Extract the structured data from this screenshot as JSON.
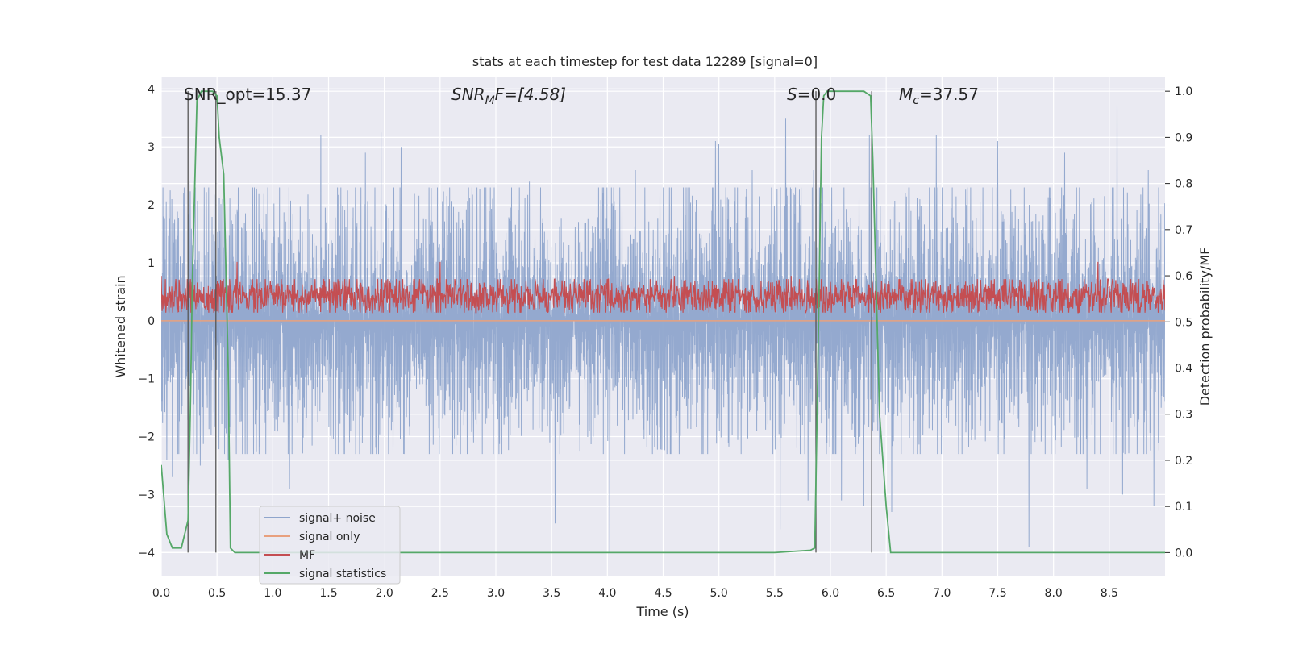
{
  "chart_data": {
    "type": "line",
    "title": "stats at each timestep for test data 12289 [signal=0]",
    "xlabel": "Time (s)",
    "ylabel": "Whitened strain",
    "y2label": "Detection probability/MF",
    "xlim": [
      0.0,
      9.0
    ],
    "ylim": [
      -4.4,
      4.2
    ],
    "y2lim": [
      -0.05,
      1.03
    ],
    "xticks": [
      "0.0",
      "0.5",
      "1.0",
      "1.5",
      "2.0",
      "2.5",
      "3.0",
      "3.5",
      "4.0",
      "4.5",
      "5.0",
      "5.5",
      "6.0",
      "6.5",
      "7.0",
      "7.5",
      "8.0",
      "8.5"
    ],
    "yticks": [
      "−4",
      "−3",
      "−2",
      "−1",
      "0",
      "1",
      "2",
      "3",
      "4"
    ],
    "y2ticks": [
      "0.0",
      "0.1",
      "0.2",
      "0.3",
      "0.4",
      "0.5",
      "0.6",
      "0.7",
      "0.8",
      "0.9",
      "1.0"
    ],
    "grid": true,
    "legend_position": "lower-left",
    "legend": [
      {
        "name": "signal+ noise",
        "color": "#8fa5cc"
      },
      {
        "name": "signal only",
        "color": "#e8a07e"
      },
      {
        "name": "MF",
        "color": "#c44e52"
      },
      {
        "name": "signal statistics",
        "color": "#55a868"
      }
    ],
    "annotations": {
      "snr_opt": "SNR_opt=15.37",
      "snr_mf_label": "SNR",
      "snr_mf_sub": "M",
      "snr_mf_value": "F=[4.58]",
      "s_label": "S",
      "s_value": "=0.0",
      "mc_label": "M",
      "mc_sub": "c",
      "mc_value": "=37.57"
    },
    "series": [
      {
        "name": "signal+ noise",
        "axis": "left",
        "description_amplitude": 1.2,
        "peaks": [
          [
            0.02,
            1.8
          ],
          [
            0.05,
            -2.4
          ],
          [
            0.08,
            2.25
          ],
          [
            0.1,
            -2.7
          ],
          [
            0.2,
            2.2
          ],
          [
            0.25,
            2.4
          ],
          [
            0.35,
            -2.5
          ],
          [
            0.49,
            3.25
          ],
          [
            0.55,
            2.1
          ],
          [
            0.6,
            -2.4
          ],
          [
            0.85,
            2.3
          ],
          [
            1.15,
            -2.9
          ],
          [
            1.43,
            3.2
          ],
          [
            1.83,
            2.9
          ],
          [
            1.97,
            3.25
          ],
          [
            2.15,
            3.0
          ],
          [
            2.8,
            -2.1
          ],
          [
            3.3,
            2.4
          ],
          [
            3.53,
            -3.5
          ],
          [
            4.02,
            -4.0
          ],
          [
            4.25,
            2.6
          ],
          [
            4.5,
            2.3
          ],
          [
            4.97,
            3.1
          ],
          [
            5.0,
            3.05
          ],
          [
            5.3,
            2.6
          ],
          [
            5.55,
            -3.6
          ],
          [
            5.6,
            3.5
          ],
          [
            5.8,
            -3.1
          ],
          [
            5.85,
            2.6
          ],
          [
            6.1,
            -3.1
          ],
          [
            6.3,
            -3.2
          ],
          [
            6.35,
            3.2
          ],
          [
            6.55,
            -3.3
          ],
          [
            6.95,
            3.2
          ],
          [
            7.5,
            3.1
          ],
          [
            7.78,
            -3.9
          ],
          [
            8.1,
            2.9
          ],
          [
            8.3,
            -2.9
          ],
          [
            8.57,
            3.8
          ],
          [
            8.62,
            -3.0
          ],
          [
            8.85,
            2.6
          ],
          [
            8.9,
            -3.2
          ]
        ]
      },
      {
        "name": "signal only",
        "axis": "left",
        "constant": 0.0
      },
      {
        "name": "MF",
        "axis": "right",
        "mean": 0.555,
        "spread": 0.02,
        "peaks": [
          [
            0.0,
            0.6
          ],
          [
            0.68,
            0.63
          ],
          [
            2.5,
            0.63
          ],
          [
            4.6,
            0.6
          ],
          [
            5.65,
            0.6
          ],
          [
            8.4,
            0.63
          ]
        ]
      },
      {
        "name": "signal statistics",
        "axis": "right",
        "x": [
          0.0,
          0.05,
          0.1,
          0.18,
          0.24,
          0.26,
          0.28,
          0.32,
          0.36,
          0.46,
          0.5,
          0.52,
          0.56,
          0.6,
          0.62,
          0.66,
          0.7,
          1.5,
          2.5,
          3.5,
          4.5,
          5.5,
          5.82,
          5.86,
          5.88,
          5.9,
          5.92,
          5.94,
          5.97,
          6.0,
          6.3,
          6.36,
          6.38,
          6.44,
          6.5,
          6.54,
          7.0,
          8.0,
          9.0
        ],
        "y": [
          0.19,
          0.04,
          0.01,
          0.01,
          0.07,
          0.3,
          0.6,
          0.98,
          1.0,
          1.0,
          0.99,
          0.9,
          0.82,
          0.4,
          0.01,
          0.0,
          0.0,
          0.0,
          0.0,
          0.0,
          0.0,
          0.0,
          0.005,
          0.01,
          0.3,
          0.6,
          0.9,
          0.99,
          1.0,
          1.0,
          1.0,
          0.99,
          0.85,
          0.3,
          0.1,
          0.0,
          0.0,
          0.0,
          0.0
        ]
      }
    ],
    "vertical_lines_x": [
      0.24,
      0.49,
      5.87,
      6.37
    ]
  }
}
